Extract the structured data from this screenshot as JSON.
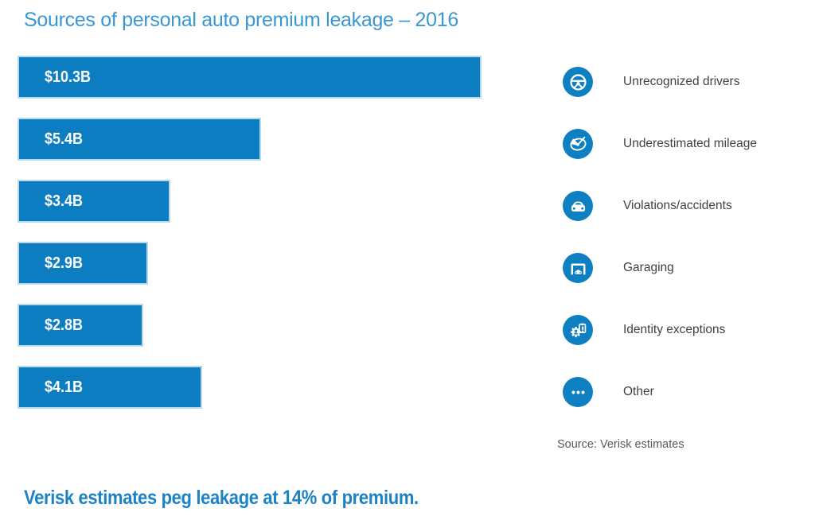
{
  "title": "Sources of personal auto premium leakage – 2016",
  "chart_data": {
    "type": "bar",
    "orientation": "horizontal",
    "title": "Sources of personal auto premium leakage – 2016",
    "categories": [
      "Unrecognized drivers",
      "Underestimated mileage",
      "Violations/accidents",
      "Garaging",
      "Identity exceptions",
      "Other"
    ],
    "values": [
      10.3,
      5.4,
      3.4,
      2.9,
      2.8,
      4.1
    ],
    "labels": [
      "$10.3B",
      "$5.4B",
      "$3.4B",
      "$2.9B",
      "$2.8B",
      "$4.1B"
    ],
    "unit": "billions of US dollars",
    "xlim": [
      0,
      10.3
    ],
    "grid": false,
    "value_labels_inside_bars": true,
    "legend_position": "right"
  },
  "legend": {
    "items": [
      {
        "icon": "steering-wheel-icon",
        "label": "Unrecognized drivers"
      },
      {
        "icon": "gauge-icon",
        "label": "Underestimated mileage"
      },
      {
        "icon": "car-front-icon",
        "label": "Violations/accidents"
      },
      {
        "icon": "garage-icon",
        "label": "Garaging"
      },
      {
        "icon": "identity-exceptions-icon",
        "label": "Identity exceptions"
      },
      {
        "icon": "ellipsis-icon",
        "label": "Other"
      }
    ]
  },
  "source_note": "Source: Verisk estimates",
  "footer_headline": "Verisk estimates peg leakage at 14% of premium.",
  "colors": {
    "bar": "#0b7dc0",
    "bar_border": "#b7d9ee",
    "icon_circle": "#0e80c2",
    "title_text": "#3a97d4",
    "footer_text": "#1c82c5",
    "legend_text": "#414042",
    "source_text": "#58595b"
  }
}
